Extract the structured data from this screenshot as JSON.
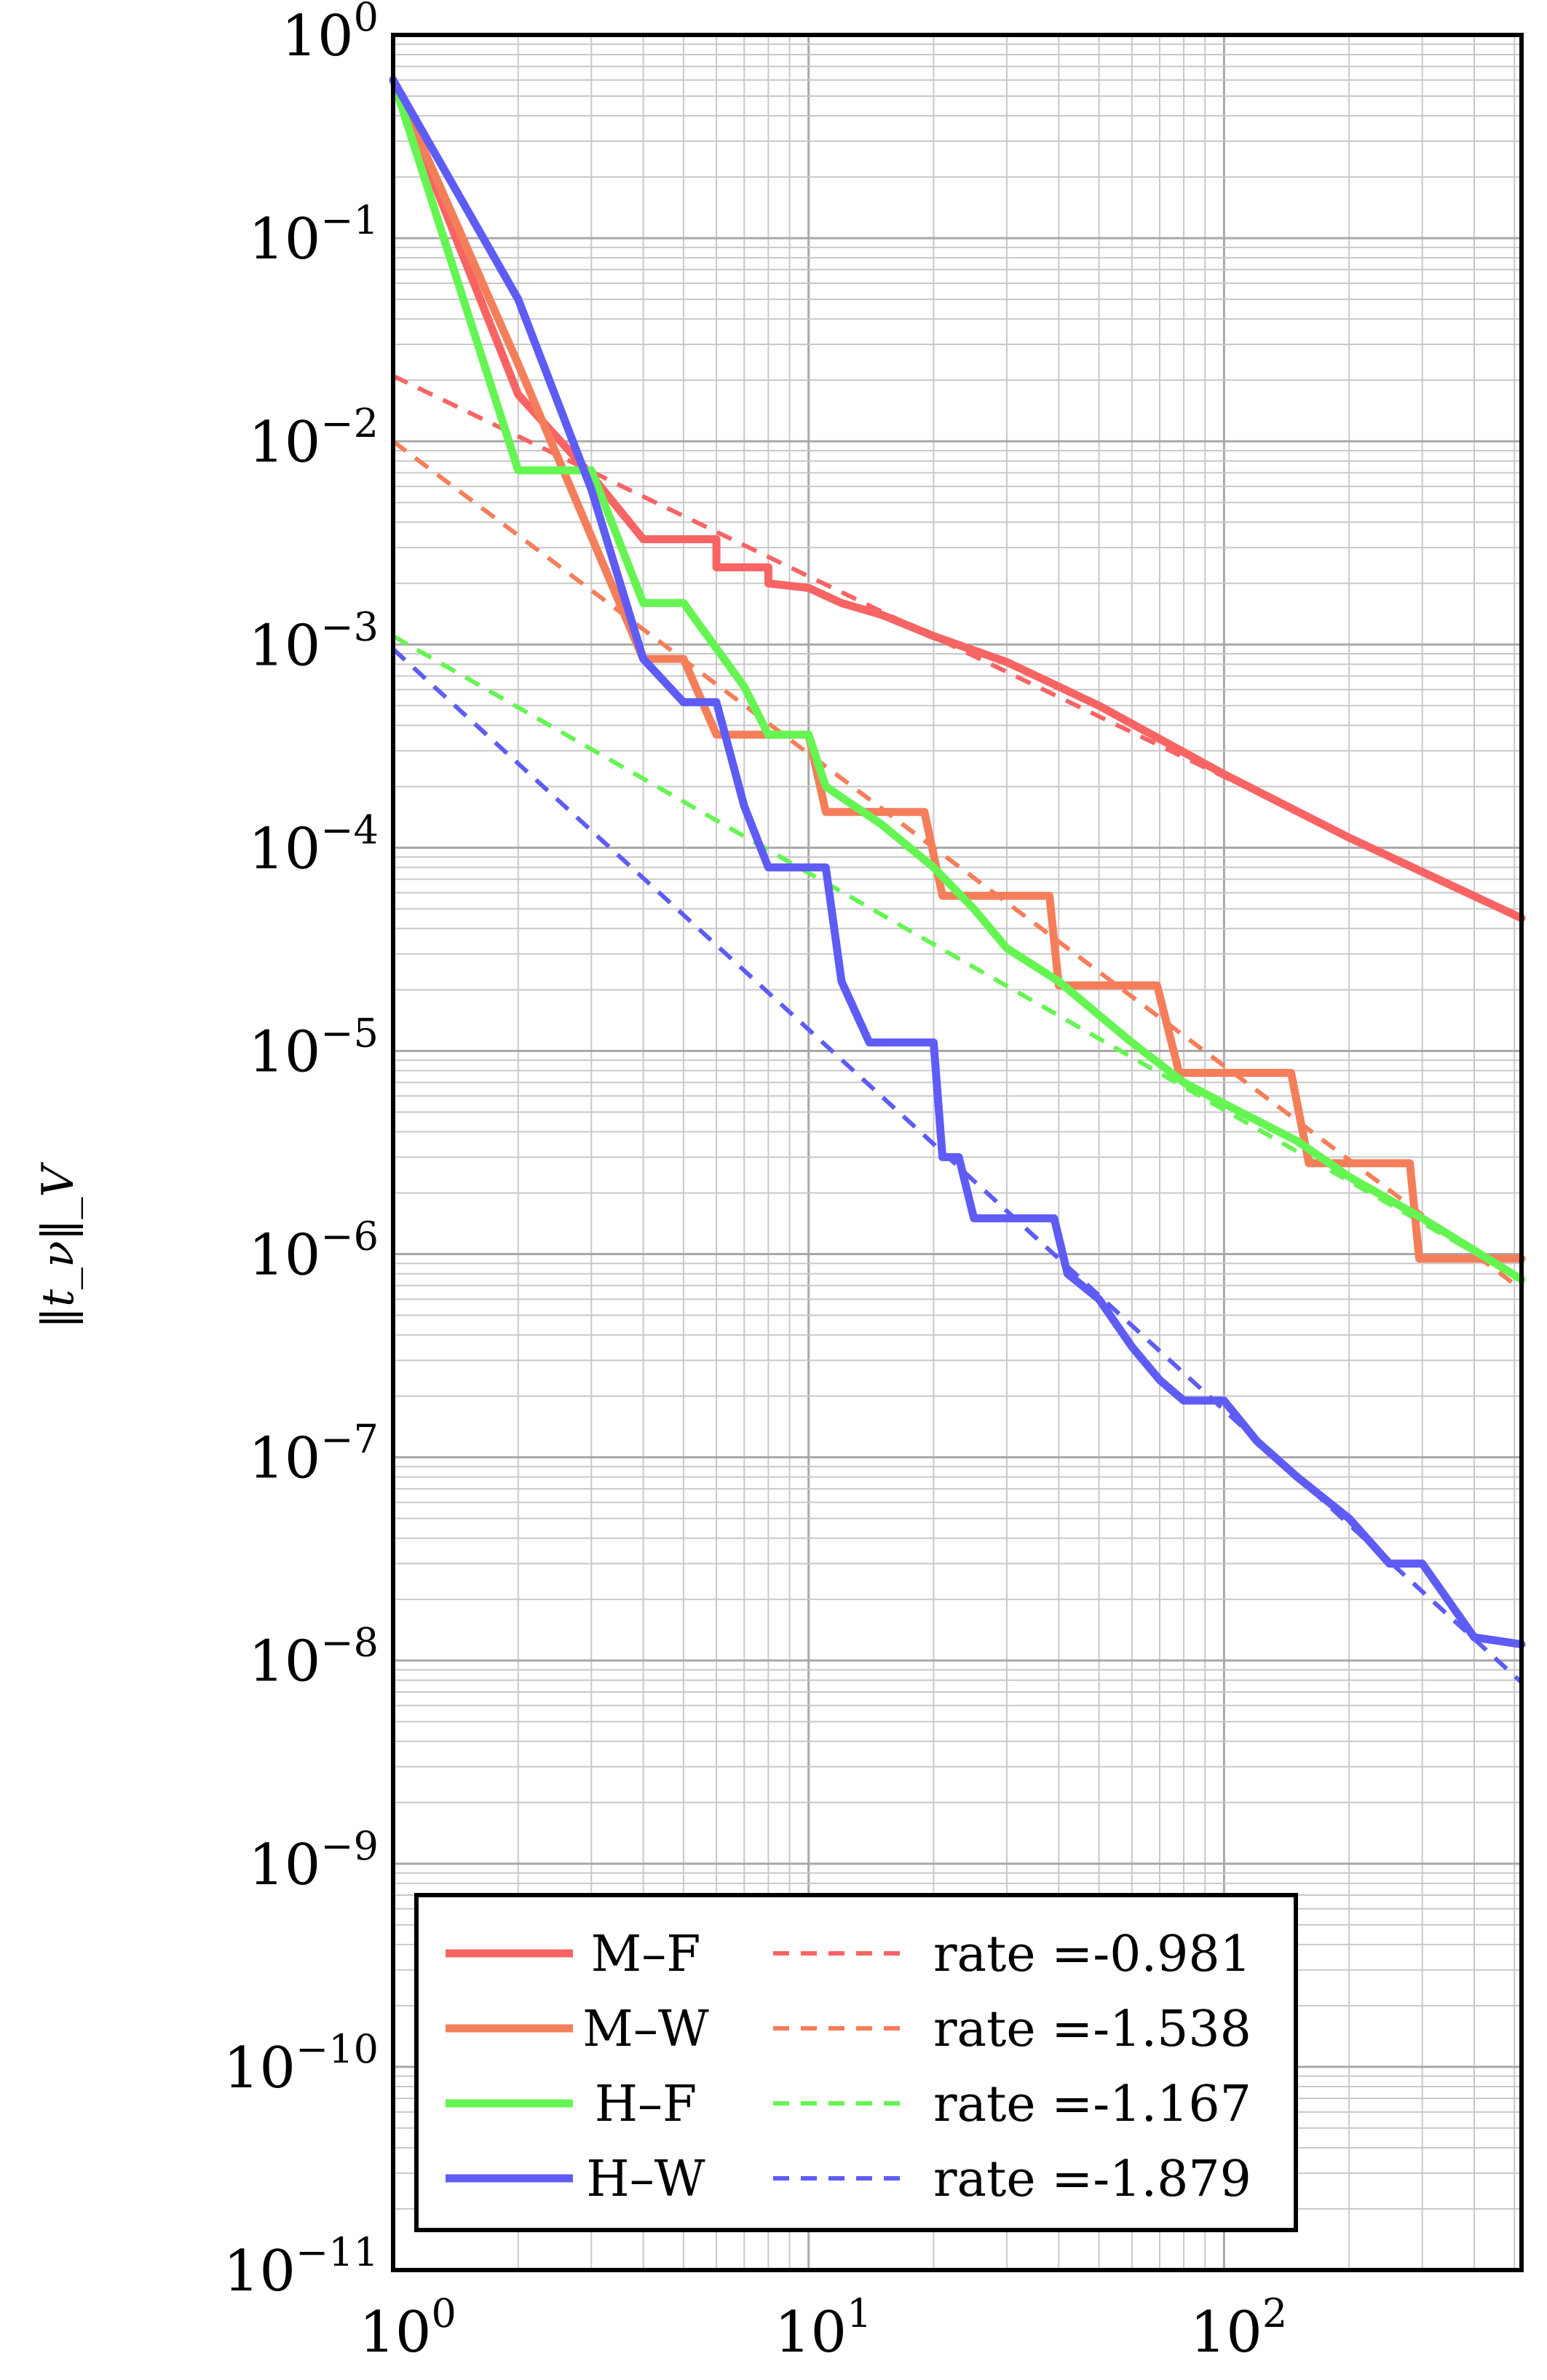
{
  "chart_data": {
    "type": "line",
    "title": "",
    "xlabel": "",
    "ylabel": "‖t_ν‖_V",
    "x_scale": "log",
    "y_scale": "log",
    "xlim": [
      1,
      520
    ],
    "ylim": [
      1e-11,
      1
    ],
    "grid": true,
    "legend_position": "bottom-center",
    "x_ticks": [
      {
        "value": 1,
        "base": "10",
        "exp": "0"
      },
      {
        "value": 10,
        "base": "10",
        "exp": "1"
      },
      {
        "value": 100,
        "base": "10",
        "exp": "2"
      }
    ],
    "y_ticks": [
      {
        "value": 1,
        "base": "10",
        "exp": "0"
      },
      {
        "value": 0.1,
        "base": "10",
        "exp": "−1"
      },
      {
        "value": 0.01,
        "base": "10",
        "exp": "−2"
      },
      {
        "value": 0.001,
        "base": "10",
        "exp": "−3"
      },
      {
        "value": 0.0001,
        "base": "10",
        "exp": "−4"
      },
      {
        "value": 1e-05,
        "base": "10",
        "exp": "−5"
      },
      {
        "value": 1e-06,
        "base": "10",
        "exp": "−6"
      },
      {
        "value": 1e-07,
        "base": "10",
        "exp": "−7"
      },
      {
        "value": 1e-08,
        "base": "10",
        "exp": "−8"
      },
      {
        "value": 1e-09,
        "base": "10",
        "exp": "−9"
      },
      {
        "value": 1e-10,
        "base": "10",
        "exp": "−10"
      },
      {
        "value": 1e-11,
        "base": "10",
        "exp": "−11"
      }
    ],
    "series": [
      {
        "name": "M–F",
        "style": "solid",
        "color": "#f86464",
        "points": [
          [
            1,
            0.6
          ],
          [
            2,
            0.017
          ],
          [
            3,
            0.0068
          ],
          [
            4,
            0.0033
          ],
          [
            6,
            0.0033
          ],
          [
            6,
            0.0024
          ],
          [
            8,
            0.0024
          ],
          [
            8,
            0.002
          ],
          [
            10,
            0.0019
          ],
          [
            12,
            0.0016
          ],
          [
            15,
            0.0014
          ],
          [
            20,
            0.0011
          ],
          [
            30,
            0.00082
          ],
          [
            50,
            0.0005
          ],
          [
            100,
            0.00023
          ],
          [
            200,
            0.000112
          ],
          [
            520,
            4.5e-05
          ]
        ]
      },
      {
        "name": "M–W",
        "style": "solid",
        "color": "#f57e5a",
        "points": [
          [
            1,
            0.6
          ],
          [
            2,
            0.024
          ],
          [
            4,
            0.00085
          ],
          [
            5,
            0.00085
          ],
          [
            6,
            0.00036
          ],
          [
            10,
            0.00036
          ],
          [
            11,
            0.00015
          ],
          [
            19,
            0.00015
          ],
          [
            21,
            5.8e-05
          ],
          [
            38,
            5.8e-05
          ],
          [
            40,
            2.1e-05
          ],
          [
            69,
            2.1e-05
          ],
          [
            78,
            7.8e-06
          ],
          [
            145,
            7.8e-06
          ],
          [
            160,
            2.8e-06
          ],
          [
            280,
            2.8e-06
          ],
          [
            295,
            9.5e-07
          ],
          [
            520,
            9.5e-07
          ]
        ]
      },
      {
        "name": "H–F",
        "style": "solid",
        "color": "#65f552",
        "points": [
          [
            1,
            0.6
          ],
          [
            2,
            0.0072
          ],
          [
            3,
            0.0072
          ],
          [
            4,
            0.0016
          ],
          [
            5,
            0.0016
          ],
          [
            7,
            0.00062
          ],
          [
            8,
            0.00036
          ],
          [
            10,
            0.00036
          ],
          [
            11,
            0.0002
          ],
          [
            15,
            0.00013
          ],
          [
            20,
            8e-05
          ],
          [
            25,
            5e-05
          ],
          [
            30,
            3.2e-05
          ],
          [
            40,
            2.2e-05
          ],
          [
            50,
            1.5e-05
          ],
          [
            60,
            1.1e-05
          ],
          [
            80,
            7e-06
          ],
          [
            100,
            5.5e-06
          ],
          [
            150,
            3.6e-06
          ],
          [
            200,
            2.4e-06
          ],
          [
            300,
            1.5e-06
          ],
          [
            520,
            7.5e-07
          ]
        ]
      },
      {
        "name": "H–W",
        "style": "solid",
        "color": "#5e5cf5",
        "points": [
          [
            1,
            0.6
          ],
          [
            2,
            0.05
          ],
          [
            3,
            0.0058
          ],
          [
            4,
            0.00085
          ],
          [
            5,
            0.00052
          ],
          [
            6,
            0.00052
          ],
          [
            7,
            0.00016
          ],
          [
            8,
            8e-05
          ],
          [
            11,
            8e-05
          ],
          [
            12,
            2.2e-05
          ],
          [
            14,
            1.1e-05
          ],
          [
            20,
            1.1e-05
          ],
          [
            21,
            3e-06
          ],
          [
            23,
            3e-06
          ],
          [
            25,
            1.5e-06
          ],
          [
            39,
            1.5e-06
          ],
          [
            42,
            8e-07
          ],
          [
            50,
            6e-07
          ],
          [
            60,
            3.5e-07
          ],
          [
            70,
            2.4e-07
          ],
          [
            80,
            1.9e-07
          ],
          [
            100,
            1.9e-07
          ],
          [
            120,
            1.2e-07
          ],
          [
            150,
            8e-08
          ],
          [
            200,
            5e-08
          ],
          [
            250,
            3e-08
          ],
          [
            300,
            3e-08
          ],
          [
            400,
            1.3e-08
          ],
          [
            520,
            1.2e-08
          ]
        ]
      },
      {
        "name": "rate =-0.981",
        "style": "dashed",
        "color": "#f86464",
        "points": [
          [
            1,
            0.021
          ],
          [
            520,
            4.4e-05
          ]
        ]
      },
      {
        "name": "rate =-1.538",
        "style": "dashed",
        "color": "#f57e5a",
        "points": [
          [
            1,
            0.01
          ],
          [
            520,
            6.7e-07
          ]
        ]
      },
      {
        "name": "rate =-1.167",
        "style": "dashed",
        "color": "#65f552",
        "points": [
          [
            1,
            0.0011
          ],
          [
            520,
            7.5e-07
          ]
        ]
      },
      {
        "name": "rate =-1.879",
        "style": "dashed",
        "color": "#5e5cf5",
        "points": [
          [
            1,
            0.00095
          ],
          [
            520,
            7.8e-09
          ]
        ]
      }
    ],
    "legend": {
      "rows": [
        {
          "solid_label": "M–F",
          "solid_color": "#f86464",
          "dashed_label": "rate =-0.981",
          "dashed_color": "#f86464"
        },
        {
          "solid_label": "M–W",
          "solid_color": "#f57e5a",
          "dashed_label": "rate =-1.538",
          "dashed_color": "#f57e5a"
        },
        {
          "solid_label": "H–F",
          "solid_color": "#65f552",
          "dashed_label": "rate =-1.167",
          "dashed_color": "#65f552"
        },
        {
          "solid_label": "H–W",
          "solid_color": "#5e5cf5",
          "dashed_label": "rate =-1.879",
          "dashed_color": "#5e5cf5"
        }
      ]
    }
  }
}
